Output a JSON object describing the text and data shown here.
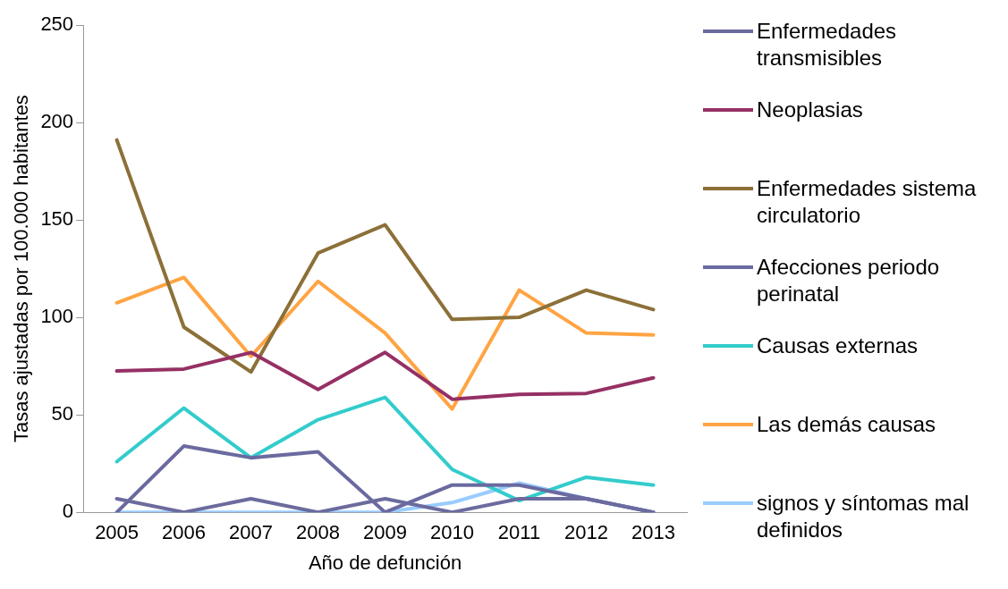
{
  "chart_data": {
    "type": "line",
    "xlabel": "Año de defunción",
    "ylabel": "Tasas ajustadas por 100.000 habitantes",
    "categories": [
      "2005",
      "2006",
      "2007",
      "2008",
      "2009",
      "2010",
      "2011",
      "2012",
      "2013"
    ],
    "ylim": [
      0,
      250
    ],
    "yticks": [
      0,
      50,
      100,
      150,
      200,
      250
    ],
    "grid": false,
    "legend": "right",
    "marker": "none",
    "line_style": "solid",
    "series": [
      {
        "name": "Enfermedades transmisibles",
        "color": "#6b6b9e",
        "values": [
          7,
          0,
          7,
          0,
          7,
          0,
          7,
          7,
          0
        ]
      },
      {
        "name": "Neoplasias",
        "color": "#953064",
        "values": [
          72.5,
          73.5,
          82,
          63,
          82,
          58,
          60.5,
          61,
          69
        ]
      },
      {
        "name": "Enfermedades sistema circulatorio",
        "color": "#8c7038",
        "values": [
          191,
          95,
          72,
          133,
          147.5,
          99,
          100,
          114,
          104
        ]
      },
      {
        "name": "Afecciones periodo perinatal",
        "color": "#6a6aa0",
        "values": [
          0,
          34,
          28,
          31,
          0,
          14,
          14,
          7,
          0
        ]
      },
      {
        "name": "Causas externas",
        "color": "#33cccc",
        "values": [
          26,
          53.5,
          28,
          47.5,
          59,
          22,
          6,
          18,
          14
        ]
      },
      {
        "name": "Las demás causas",
        "color": "#ffa443",
        "values": [
          107.5,
          120.5,
          80,
          118.5,
          92,
          53,
          114,
          92,
          91
        ]
      },
      {
        "name": "signos y síntomas mal definidos",
        "color": "#99ccff",
        "values": [
          0,
          0,
          0,
          0,
          0,
          5,
          15,
          7,
          0
        ]
      }
    ]
  }
}
